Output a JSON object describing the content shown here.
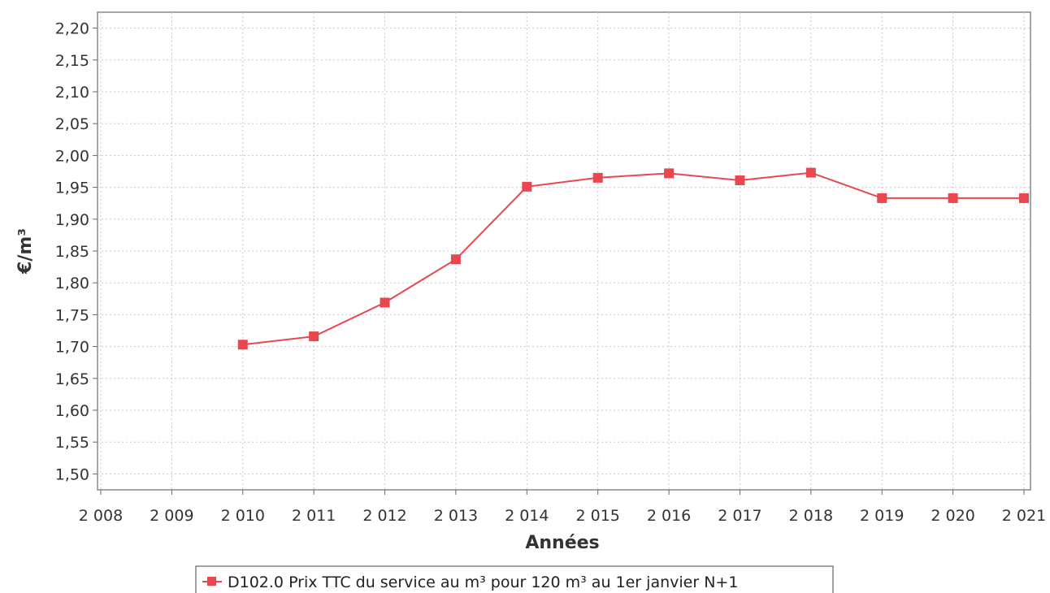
{
  "chart_data": {
    "type": "line",
    "title": "",
    "xlabel": "Années",
    "ylabel": "€/m³",
    "xlim": [
      2008,
      2021
    ],
    "ylim": [
      1.475,
      2.225
    ],
    "x_ticks": [
      2008,
      2009,
      2010,
      2011,
      2012,
      2013,
      2014,
      2015,
      2016,
      2017,
      2018,
      2019,
      2020,
      2021
    ],
    "x_tick_labels": [
      "2 008",
      "2 009",
      "2 010",
      "2 011",
      "2 012",
      "2 013",
      "2 014",
      "2 015",
      "2 016",
      "2 017",
      "2 018",
      "2 019",
      "2 020",
      "2 021"
    ],
    "y_ticks": [
      1.5,
      1.55,
      1.6,
      1.65,
      1.7,
      1.75,
      1.8,
      1.85,
      1.9,
      1.95,
      2.0,
      2.05,
      2.1,
      2.15,
      2.2
    ],
    "y_tick_labels": [
      "1,50",
      "1,55",
      "1,60",
      "1,65",
      "1,70",
      "1,75",
      "1,80",
      "1,85",
      "1,90",
      "1,95",
      "2,00",
      "2,05",
      "2,10",
      "2,15",
      "2,20"
    ],
    "grid": true,
    "legend_position": "bottom",
    "series": [
      {
        "name": "D102.0 Prix TTC du service au m³ pour 120 m³ au 1er janvier N+1",
        "color": "#e8474f",
        "marker": "square",
        "x": [
          2010,
          2011,
          2012,
          2013,
          2014,
          2015,
          2016,
          2017,
          2018,
          2019,
          2020,
          2021
        ],
        "y": [
          1.703,
          1.716,
          1.769,
          1.837,
          1.951,
          1.965,
          1.972,
          1.961,
          1.973,
          1.933,
          1.933,
          1.933
        ]
      }
    ]
  }
}
